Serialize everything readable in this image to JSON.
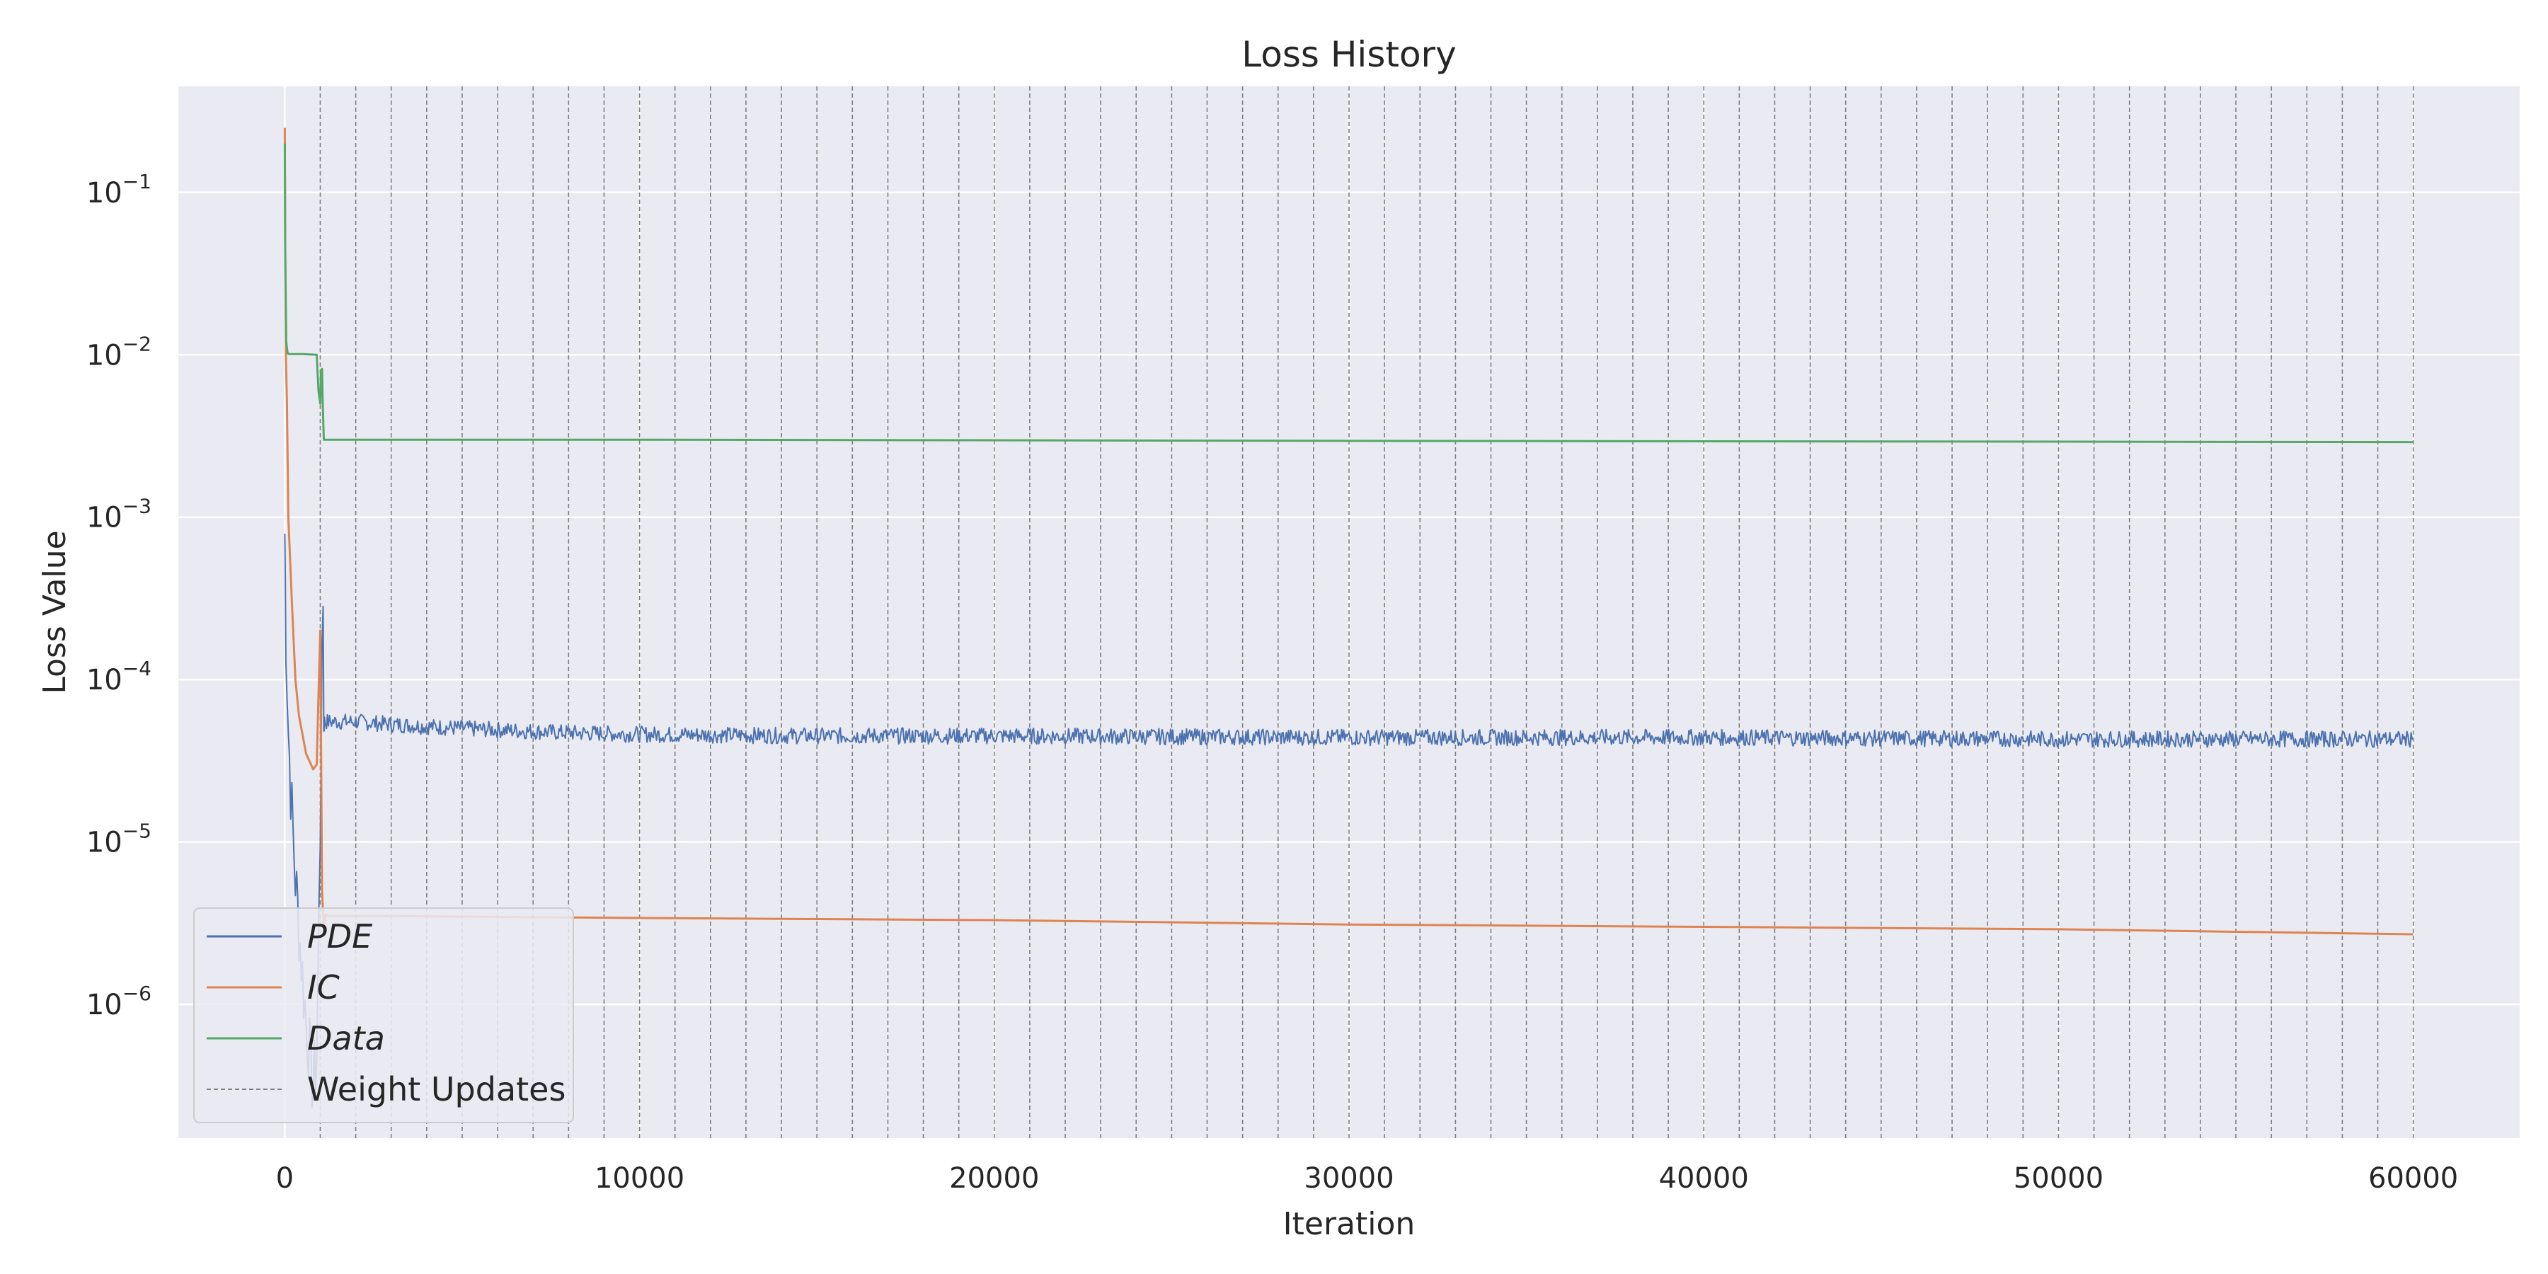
{
  "chart_data": {
    "type": "line",
    "title": "Loss History",
    "xlabel": "Iteration",
    "ylabel": "Loss Value",
    "xlim": [
      -3000,
      63000
    ],
    "ylim": [
      1.5e-07,
      0.45
    ],
    "yscale": "log",
    "xticks": [
      0,
      10000,
      20000,
      30000,
      40000,
      50000,
      60000
    ],
    "xtick_labels": [
      "0",
      "10000",
      "20000",
      "30000",
      "40000",
      "50000",
      "60000"
    ],
    "yticks": [
      {
        "value": 1e-06,
        "base": "10",
        "exp": "−6"
      },
      {
        "value": 1e-05,
        "base": "10",
        "exp": "−5"
      },
      {
        "value": 0.0001,
        "base": "10",
        "exp": "−4"
      },
      {
        "value": 0.001,
        "base": "10",
        "exp": "−3"
      },
      {
        "value": 0.01,
        "base": "10",
        "exp": "−2"
      },
      {
        "value": 0.1,
        "base": "10",
        "exp": "−1"
      }
    ],
    "grid": true,
    "legend_position": "lower-left",
    "background": "#eaeaf2",
    "weight_update_iterations": {
      "start": 1000,
      "end": 60000,
      "step": 1000
    },
    "series": [
      {
        "name": "PDE",
        "color": "#4c72b0",
        "noise": 0.05,
        "x": [
          0,
          30,
          100,
          200,
          300,
          400,
          500,
          600,
          700,
          800,
          900,
          1000,
          1050,
          1080,
          1100,
          1120,
          1150,
          1200,
          1500,
          2000,
          3000,
          5000,
          8000,
          10000,
          15000,
          20000,
          30000,
          40000,
          50000,
          60000
        ],
        "y": [
          0.0008,
          0.0002,
          5e-05,
          1.5e-05,
          6e-06,
          3e-06,
          1.5e-06,
          8e-07,
          5e-07,
          3e-07,
          5e-07,
          1e-05,
          0.00015,
          0.0003,
          5e-05,
          5.5e-05,
          5.5e-05,
          5.5e-05,
          5.5e-05,
          5.5e-05,
          5.3e-05,
          5e-05,
          4.7e-05,
          4.6e-05,
          4.5e-05,
          4.5e-05,
          4.4e-05,
          4.4e-05,
          4.3e-05,
          4.3e-05
        ]
      },
      {
        "name": "IC",
        "color": "#dd8452",
        "x": [
          0,
          10,
          30,
          60,
          100,
          200,
          300,
          400,
          600,
          800,
          900,
          950,
          1000,
          1050,
          1100,
          1150,
          1200,
          1500,
          3000,
          10000,
          20000,
          30000,
          40000,
          50000,
          60000
        ],
        "y": [
          0.25,
          0.05,
          0.01,
          0.005,
          0.001,
          0.0003,
          0.0001,
          6e-05,
          3.5e-05,
          2.8e-05,
          3e-05,
          8e-05,
          0.0002,
          5e-06,
          3e-06,
          3.6e-06,
          3.5e-06,
          3.5e-06,
          3.5e-06,
          3.4e-06,
          3.3e-06,
          3.1e-06,
          3e-06,
          2.9e-06,
          2.7e-06
        ]
      },
      {
        "name": "Data",
        "color": "#55a868",
        "x": [
          0,
          10,
          40,
          80,
          120,
          500,
          900,
          950,
          1000,
          1020,
          1050,
          1070,
          1100,
          1150,
          2000,
          10000,
          30000,
          60000
        ],
        "y": [
          0.2,
          0.05,
          0.012,
          0.0102,
          0.0101,
          0.0101,
          0.01,
          0.006,
          0.005,
          0.008,
          0.0082,
          0.005,
          0.003,
          0.003,
          0.003,
          0.003,
          0.00295,
          0.0029
        ]
      }
    ],
    "legend": [
      {
        "label": "PDE",
        "italic": true,
        "color": "#4c72b0",
        "style": "solid"
      },
      {
        "label": "IC",
        "italic": true,
        "color": "#dd8452",
        "style": "solid"
      },
      {
        "label": "Data",
        "italic": true,
        "color": "#55a868",
        "style": "solid"
      },
      {
        "label": "Weight Updates",
        "italic": false,
        "color": "#808080",
        "style": "dashed"
      }
    ]
  }
}
